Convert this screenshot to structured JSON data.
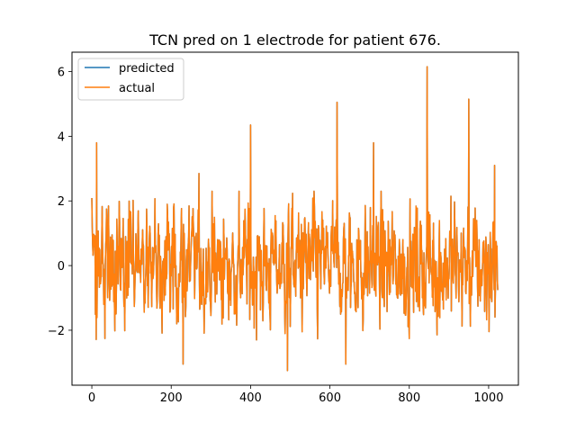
{
  "chart_data": {
    "type": "line",
    "title": "TCN pred on 1 electrode for patient 676.",
    "xlabel": "",
    "ylabel": "",
    "xlim": [
      -50,
      1075
    ],
    "ylim": [
      -3.7,
      6.6
    ],
    "xticks": [
      0,
      200,
      400,
      600,
      800,
      1000
    ],
    "yticks": [
      -2,
      0,
      2,
      4,
      6
    ],
    "grid": false,
    "legend_position": "upper-left",
    "n_points": 1024,
    "series": [
      {
        "name": "predicted",
        "color": "#1f77b4",
        "x_range": [
          0,
          1023
        ],
        "shape": "noisy signal fully overlapped by actual"
      },
      {
        "name": "actual",
        "color": "#ff7f0e",
        "x_range": [
          0,
          1023
        ],
        "approx_mean": 0.0,
        "approx_std": 0.9,
        "min": -3.25,
        "max": 6.15,
        "spikes": [
          {
            "x": 12,
            "y": 3.8
          },
          {
            "x": 230,
            "y": -3.05
          },
          {
            "x": 270,
            "y": 2.85
          },
          {
            "x": 400,
            "y": 4.35
          },
          {
            "x": 493,
            "y": -3.25
          },
          {
            "x": 618,
            "y": 5.05
          },
          {
            "x": 640,
            "y": -3.05
          },
          {
            "x": 710,
            "y": 3.8
          },
          {
            "x": 845,
            "y": 6.15
          },
          {
            "x": 950,
            "y": 5.15
          },
          {
            "x": 1015,
            "y": 3.1
          }
        ]
      }
    ]
  }
}
